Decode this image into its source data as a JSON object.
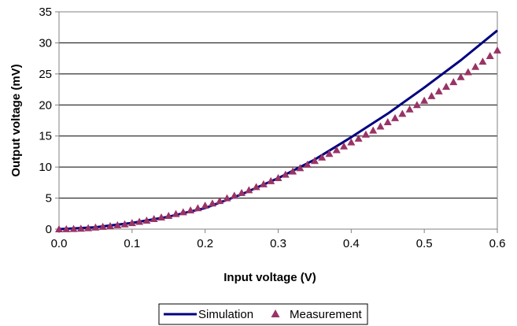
{
  "chart_data": {
    "type": "line",
    "xlabel": "Input voltage (V)",
    "ylabel": "Output voltage (mV)",
    "xlim": [
      0,
      0.6
    ],
    "ylim": [
      0,
      35
    ],
    "x_ticks": [
      "0.0",
      "0.1",
      "0.2",
      "0.3",
      "0.4",
      "0.5",
      "0.6"
    ],
    "y_ticks": [
      "0",
      "5",
      "10",
      "15",
      "20",
      "25",
      "30",
      "35"
    ],
    "grid": "horizontal",
    "legend_position": "bottom",
    "colors": {
      "simulation": "#000080",
      "measurement": "#993366"
    },
    "series": [
      {
        "name": "Simulation",
        "style": "line",
        "x": [
          0,
          0.05,
          0.1,
          0.15,
          0.2,
          0.25,
          0.3,
          0.35,
          0.4,
          0.45,
          0.5,
          0.55,
          0.6
        ],
        "y": [
          0,
          0.3,
          1.0,
          2.0,
          3.4,
          5.6,
          8.2,
          11.2,
          14.8,
          18.6,
          22.8,
          27.2,
          32.0
        ]
      },
      {
        "name": "Measurement",
        "style": "triangle-markers",
        "x": [
          0,
          0.01,
          0.02,
          0.03,
          0.04,
          0.05,
          0.06,
          0.07,
          0.08,
          0.09,
          0.1,
          0.11,
          0.12,
          0.13,
          0.14,
          0.15,
          0.16,
          0.17,
          0.18,
          0.19,
          0.2,
          0.21,
          0.22,
          0.23,
          0.24,
          0.25,
          0.26,
          0.27,
          0.28,
          0.29,
          0.3,
          0.31,
          0.32,
          0.33,
          0.34,
          0.35,
          0.36,
          0.37,
          0.38,
          0.39,
          0.4,
          0.41,
          0.42,
          0.43,
          0.44,
          0.45,
          0.46,
          0.47,
          0.48,
          0.49,
          0.5,
          0.51,
          0.52,
          0.53,
          0.54,
          0.55,
          0.56,
          0.57,
          0.58,
          0.59,
          0.6
        ],
        "y": [
          0,
          0.02,
          0.04,
          0.1,
          0.18,
          0.28,
          0.4,
          0.5,
          0.65,
          0.8,
          1.0,
          1.2,
          1.4,
          1.65,
          1.9,
          2.15,
          2.45,
          2.75,
          3.05,
          3.4,
          3.8,
          4.15,
          4.55,
          5.0,
          5.4,
          5.85,
          6.3,
          6.8,
          7.25,
          7.75,
          8.25,
          8.8,
          9.3,
          9.85,
          10.4,
          11.0,
          11.55,
          12.15,
          12.75,
          13.35,
          14.0,
          14.6,
          15.25,
          15.9,
          16.55,
          17.25,
          17.9,
          18.6,
          19.3,
          20.0,
          20.7,
          21.45,
          22.2,
          22.95,
          23.7,
          24.5,
          25.3,
          26.15,
          27.0,
          27.9,
          28.8
        ]
      }
    ]
  }
}
